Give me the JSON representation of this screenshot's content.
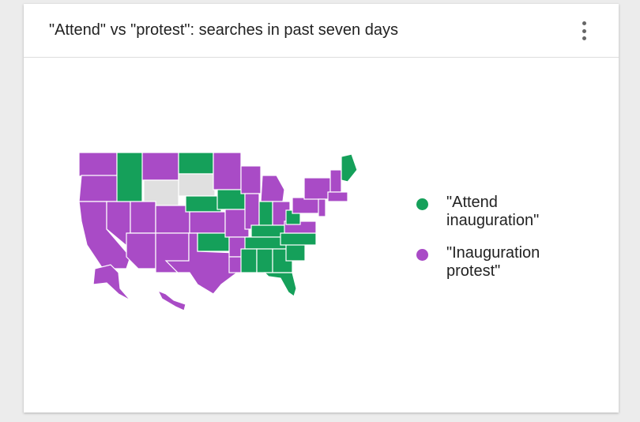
{
  "header": {
    "title": "\"Attend\" vs \"protest\": searches in past seven days"
  },
  "legend": [
    {
      "label": "\"Attend inauguration\"",
      "color": "#15a05a"
    },
    {
      "label": "\"Inauguration protest\"",
      "color": "#a94bc6"
    }
  ]
}
